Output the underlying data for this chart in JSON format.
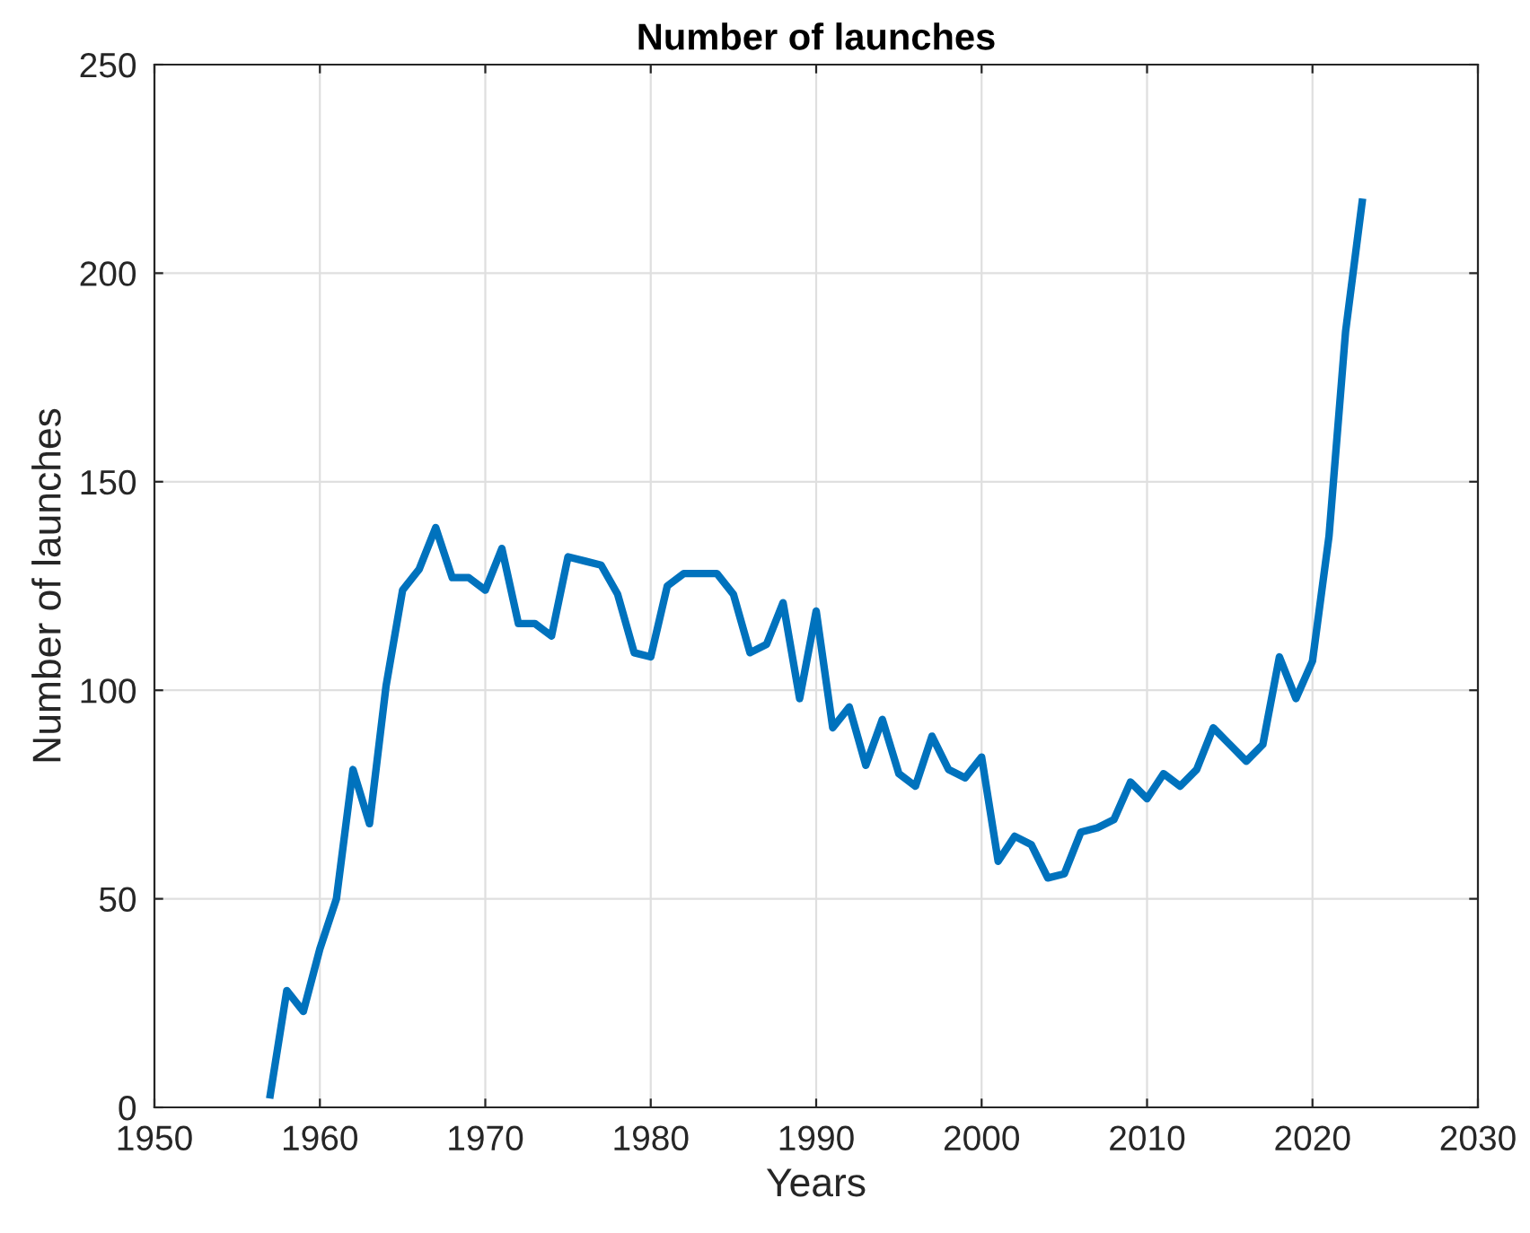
{
  "chart_data": {
    "type": "line",
    "title": "Number of launches",
    "xlabel": "Years",
    "ylabel": "Number of launches",
    "x": [
      1957,
      1958,
      1959,
      1960,
      1961,
      1962,
      1963,
      1964,
      1965,
      1966,
      1967,
      1968,
      1969,
      1970,
      1971,
      1972,
      1973,
      1974,
      1975,
      1976,
      1977,
      1978,
      1979,
      1980,
      1981,
      1982,
      1983,
      1984,
      1985,
      1986,
      1987,
      1988,
      1989,
      1990,
      1991,
      1992,
      1993,
      1994,
      1995,
      1996,
      1997,
      1998,
      1999,
      2000,
      2001,
      2002,
      2003,
      2004,
      2005,
      2006,
      2007,
      2008,
      2009,
      2010,
      2011,
      2012,
      2013,
      2014,
      2015,
      2016,
      2017,
      2018,
      2019,
      2020,
      2021,
      2022,
      2023
    ],
    "series": [
      {
        "color": "#0072bd",
        "values": [
          3,
          28,
          23,
          38,
          50,
          81,
          68,
          101,
          124,
          129,
          139,
          127,
          127,
          124,
          134,
          116,
          116,
          113,
          132,
          131,
          130,
          123,
          109,
          108,
          125,
          128,
          128,
          128,
          123,
          109,
          111,
          121,
          98,
          119,
          91,
          96,
          82,
          93,
          80,
          77,
          89,
          81,
          79,
          84,
          59,
          65,
          63,
          55,
          56,
          66,
          67,
          69,
          78,
          74,
          80,
          77,
          81,
          91,
          87,
          83,
          87,
          108,
          98,
          107,
          137,
          186,
          217
        ]
      }
    ],
    "xlim": [
      1950,
      2030
    ],
    "xticks": [
      1950,
      1960,
      1970,
      1980,
      1990,
      2000,
      2010,
      2020,
      2030
    ],
    "ylim": [
      0,
      250
    ],
    "yticks": [
      0,
      50,
      100,
      150,
      200,
      250
    ],
    "grid": true,
    "marker": "none",
    "line_style": "solid"
  }
}
